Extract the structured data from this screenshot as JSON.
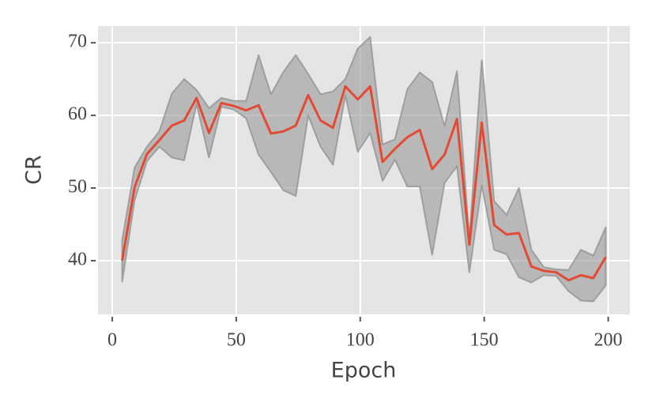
{
  "chart_data": {
    "type": "line",
    "xlabel": "Epoch",
    "ylabel": "CR",
    "x": [
      4,
      9,
      14,
      19,
      24,
      29,
      34,
      39,
      44,
      49,
      54,
      59,
      64,
      69,
      74,
      79,
      84,
      89,
      94,
      99,
      104,
      109,
      114,
      119,
      124,
      129,
      134,
      139,
      144,
      149,
      154,
      159,
      164,
      169,
      174,
      179,
      184,
      189,
      194,
      199
    ],
    "series": [
      {
        "color": "#e24a33",
        "values": [
          40.0,
          50.1,
          54.7,
          56.6,
          58.6,
          59.3,
          62.4,
          57.6,
          61.7,
          61.3,
          60.7,
          61.4,
          57.5,
          57.8,
          58.6,
          62.8,
          59.3,
          58.3,
          64.0,
          62.2,
          64.0,
          53.6,
          55.4,
          57.0,
          58.0,
          52.6,
          54.6,
          59.5,
          42.2,
          59.0,
          44.9,
          43.6,
          43.8,
          39.2,
          38.6,
          38.4,
          37.3,
          38.0,
          37.6,
          40.5
        ]
      }
    ],
    "band": {
      "color": "#999999",
      "upper": [
        42.8,
        52.8,
        55.7,
        57.8,
        63.0,
        65.0,
        63.5,
        61.0,
        62.4,
        62.0,
        62.0,
        68.3,
        62.9,
        66.0,
        68.3,
        65.7,
        62.9,
        63.3,
        65.0,
        69.2,
        70.8,
        56.0,
        56.7,
        63.6,
        65.9,
        64.6,
        58.5,
        66.1,
        42.9,
        67.6,
        48.2,
        46.3,
        50.0,
        41.5,
        39.1,
        38.8,
        38.7,
        41.5,
        40.7,
        44.6
      ],
      "lower": [
        37.1,
        48.3,
        53.7,
        55.7,
        54.2,
        53.8,
        61.6,
        54.2,
        61.2,
        60.8,
        59.6,
        54.6,
        52.2,
        49.7,
        48.9,
        60.0,
        55.7,
        53.2,
        62.8,
        55.0,
        57.6,
        51.0,
        53.9,
        50.2,
        50.2,
        40.8,
        50.7,
        53.0,
        38.4,
        50.4,
        41.5,
        40.9,
        37.7,
        37.0,
        38.0,
        37.9,
        35.8,
        34.5,
        34.4,
        36.6
      ]
    },
    "xlim": [
      -5.75,
      208.75
    ],
    "ylim": [
      32.6,
      72.3
    ],
    "xticks": [
      0,
      50,
      100,
      150,
      200
    ],
    "yticks": [
      40,
      50,
      60,
      70
    ],
    "grid": true
  }
}
